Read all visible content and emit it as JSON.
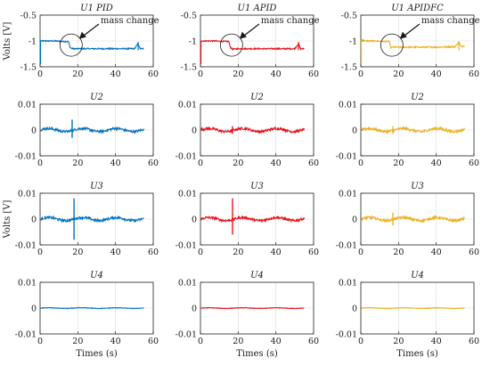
{
  "chart_data": [
    {
      "type": "line",
      "title": "U1 PID",
      "ylabel": "Volts [V]",
      "xlabel": "",
      "ylim": [
        -1.5,
        -0.5
      ],
      "yticks": [
        "-0.5",
        "-1",
        "-1.5"
      ],
      "xlim": [
        0,
        60
      ],
      "xticks": [
        "0",
        "20",
        "40",
        "60"
      ],
      "color": "#0072BD",
      "annotation": "mass change",
      "change_time": 16,
      "series": [
        {
          "x": [
            0,
            2,
            4,
            8,
            12,
            15,
            16,
            17,
            20,
            30,
            40,
            50,
            52,
            53,
            54,
            55
          ],
          "y": [
            -1.0,
            -1.0,
            -1.0,
            -1.0,
            -1.01,
            -1.01,
            -1.13,
            -1.15,
            -1.15,
            -1.15,
            -1.15,
            -1.15,
            -1.05,
            -1.15,
            -1.15,
            -1.15
          ]
        }
      ]
    },
    {
      "type": "line",
      "title": "U1 APID",
      "ylabel": "",
      "xlabel": "",
      "ylim": [
        -1.5,
        -0.5
      ],
      "yticks": [
        "-0.5",
        "-1",
        "-1.5"
      ],
      "xlim": [
        0,
        60
      ],
      "xticks": [
        "0",
        "20",
        "40",
        "60"
      ],
      "color": "#E8121B",
      "annotation": "mass change",
      "change_time": 16,
      "series": [
        {
          "x": [
            0,
            2,
            4,
            8,
            12,
            15,
            16,
            17,
            20,
            30,
            40,
            50,
            52,
            53,
            54,
            55
          ],
          "y": [
            -1.0,
            -1.0,
            -1.0,
            -1.0,
            -1.01,
            -1.01,
            -1.13,
            -1.16,
            -1.15,
            -1.15,
            -1.15,
            -1.15,
            -1.05,
            -1.15,
            -1.15,
            -1.15
          ]
        }
      ]
    },
    {
      "type": "line",
      "title": "U1 APIDFC",
      "ylabel": "",
      "xlabel": "",
      "ylim": [
        -1.5,
        -0.5
      ],
      "yticks": [
        "-0.5",
        "-1",
        "-1.5"
      ],
      "xlim": [
        0,
        60
      ],
      "xticks": [
        "0",
        "20",
        "40",
        "60"
      ],
      "color": "#EDB120",
      "annotation": "mass change",
      "change_time": 16,
      "series": [
        {
          "x": [
            0,
            2,
            4,
            8,
            12,
            15,
            16,
            17,
            20,
            30,
            40,
            50,
            52,
            53,
            54,
            55
          ],
          "y": [
            -0.95,
            -1.0,
            -1.0,
            -1.0,
            -1.01,
            -1.01,
            -1.13,
            -1.12,
            -1.12,
            -1.12,
            -1.12,
            -1.11,
            -1.02,
            -1.1,
            -1.1,
            -1.1
          ]
        }
      ]
    },
    {
      "type": "line",
      "title": "U2",
      "ylabel": "",
      "xlabel": "",
      "ylim": [
        -0.01,
        0.01
      ],
      "yticks": [
        "0.01",
        "0",
        "-0.01"
      ],
      "xlim": [
        0,
        60
      ],
      "xticks": [
        "0",
        "20",
        "40",
        "60"
      ],
      "color": "#0072BD",
      "spike_time": 17,
      "spike": [
        0.004,
        -0.003
      ],
      "series": [
        {
          "x": [
            0,
            10,
            16,
            17,
            18,
            30,
            45,
            55
          ],
          "y": [
            0,
            0,
            0,
            0.004,
            0,
            0,
            0,
            0
          ]
        }
      ]
    },
    {
      "type": "line",
      "title": "U2",
      "ylabel": "",
      "xlabel": "",
      "ylim": [
        -0.01,
        0.01
      ],
      "yticks": [
        "0.01",
        "0",
        "-0.01"
      ],
      "xlim": [
        0,
        60
      ],
      "xticks": [
        "0",
        "20",
        "40",
        "60"
      ],
      "color": "#E8121B",
      "spike_time": 17,
      "spike": [
        0.0015,
        -0.0015
      ],
      "series": [
        {
          "x": [
            0,
            10,
            16,
            17,
            18,
            30,
            45,
            55
          ],
          "y": [
            0,
            0,
            0,
            0.0015,
            0,
            0,
            0,
            0
          ]
        }
      ]
    },
    {
      "type": "line",
      "title": "U2",
      "ylabel": "",
      "xlabel": "",
      "ylim": [
        -0.01,
        0.01
      ],
      "yticks": [
        "0.01",
        "0",
        "-0.01"
      ],
      "xlim": [
        0,
        60
      ],
      "xticks": [
        "0",
        "20",
        "40",
        "60"
      ],
      "color": "#EDB120",
      "spike_time": 17,
      "spike": [
        0.0015,
        -0.0015
      ],
      "series": [
        {
          "x": [
            0,
            10,
            16,
            17,
            18,
            30,
            45,
            55
          ],
          "y": [
            0,
            0,
            0,
            0.0015,
            0,
            0,
            0,
            0
          ]
        }
      ]
    },
    {
      "type": "line",
      "title": "U3",
      "ylabel": "Volts [V]",
      "xlabel": "",
      "ylim": [
        -0.01,
        0.01
      ],
      "yticks": [
        "0.01",
        "0",
        "-0.01"
      ],
      "xlim": [
        0,
        60
      ],
      "xticks": [
        "0",
        "20",
        "40",
        "60"
      ],
      "color": "#0072BD",
      "spike_time": 18,
      "spike": [
        0.008,
        -0.008
      ],
      "series": [
        {
          "x": [
            0,
            10,
            17,
            18,
            19,
            30,
            45,
            55
          ],
          "y": [
            0,
            0,
            0,
            0.008,
            0,
            0,
            0,
            0
          ]
        }
      ]
    },
    {
      "type": "line",
      "title": "U3",
      "ylabel": "",
      "xlabel": "",
      "ylim": [
        -0.01,
        0.01
      ],
      "yticks": [
        "0.01",
        "0",
        "-0.01"
      ],
      "xlim": [
        0,
        60
      ],
      "xticks": [
        "0",
        "20",
        "40",
        "60"
      ],
      "color": "#E8121B",
      "spike_time": 17,
      "spike": [
        0.008,
        -0.006
      ],
      "series": [
        {
          "x": [
            0,
            10,
            16,
            17,
            18,
            30,
            45,
            55
          ],
          "y": [
            0,
            0,
            0,
            0.008,
            0,
            0,
            0,
            0
          ]
        }
      ]
    },
    {
      "type": "line",
      "title": "U3",
      "ylabel": "",
      "xlabel": "",
      "ylim": [
        -0.01,
        0.01
      ],
      "yticks": [
        "0.01",
        "0",
        "-0.01"
      ],
      "xlim": [
        0,
        60
      ],
      "xticks": [
        "0",
        "20",
        "40",
        "60"
      ],
      "color": "#EDB120",
      "spike_time": 17,
      "spike": [
        0.0025,
        -0.0025
      ],
      "series": [
        {
          "x": [
            0,
            10,
            16,
            17,
            18,
            30,
            45,
            55
          ],
          "y": [
            0,
            0,
            0,
            0.0025,
            0,
            0,
            0,
            0
          ]
        }
      ]
    },
    {
      "type": "line",
      "title": "U4",
      "ylabel": "",
      "xlabel": "Times (s)",
      "ylim": [
        -0.01,
        0.01
      ],
      "yticks": [
        "0.01",
        "0",
        "-0.01"
      ],
      "xlim": [
        0,
        60
      ],
      "xticks": [
        "0",
        "20",
        "40",
        "60"
      ],
      "color": "#0072BD",
      "series": [
        {
          "x": [
            0,
            55
          ],
          "y": [
            0,
            0
          ]
        }
      ]
    },
    {
      "type": "line",
      "title": "U4",
      "ylabel": "",
      "xlabel": "Times (s)",
      "ylim": [
        -0.01,
        0.01
      ],
      "yticks": [
        "0.01",
        "0",
        "-0.01"
      ],
      "xlim": [
        0,
        60
      ],
      "xticks": [
        "0",
        "20",
        "40",
        "60"
      ],
      "color": "#E8121B",
      "series": [
        {
          "x": [
            0,
            55
          ],
          "y": [
            0,
            0
          ]
        }
      ]
    },
    {
      "type": "line",
      "title": "U4",
      "ylabel": "",
      "xlabel": "Times (s)",
      "ylim": [
        -0.01,
        0.01
      ],
      "yticks": [
        "0.01",
        "0",
        "-0.01"
      ],
      "xlim": [
        0,
        60
      ],
      "xticks": [
        "0",
        "20",
        "40",
        "60"
      ],
      "color": "#EDB120",
      "series": [
        {
          "x": [
            0,
            55
          ],
          "y": [
            0,
            0
          ]
        }
      ]
    }
  ]
}
